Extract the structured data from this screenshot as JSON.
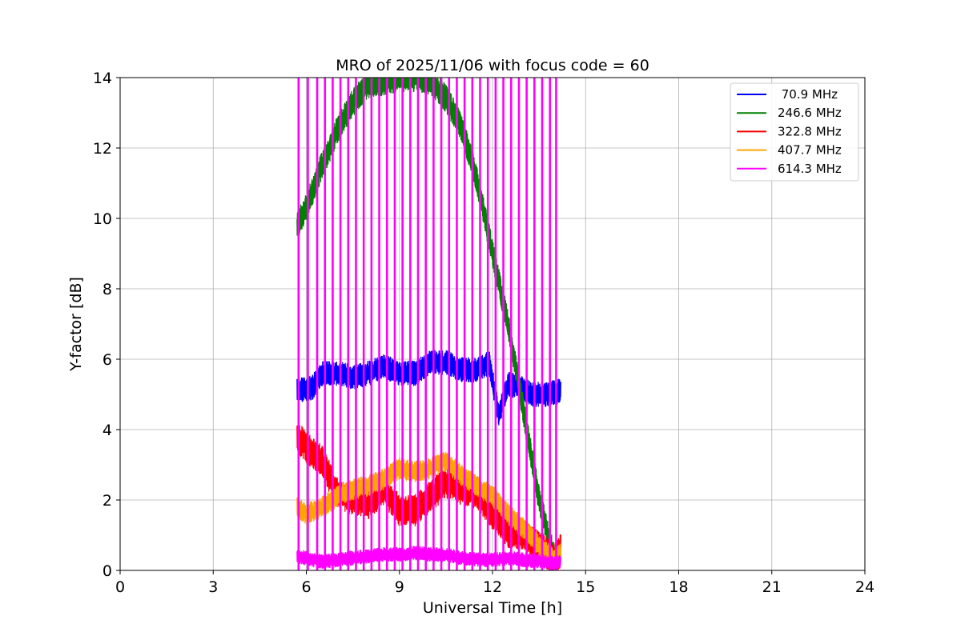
{
  "chart_data": {
    "type": "line",
    "title": "MRO of 2025/11/06 with focus code = 60",
    "xlabel": "Universal Time [h]",
    "ylabel": "Y-factor [dB]",
    "xlim": [
      0,
      24
    ],
    "ylim": [
      0,
      14
    ],
    "xticks": [
      0,
      3,
      6,
      9,
      12,
      15,
      18,
      21,
      24
    ],
    "yticks": [
      0,
      2,
      4,
      6,
      8,
      10,
      12,
      14
    ],
    "grid": true,
    "legend_position": "top-right",
    "series": [
      {
        "name": " 70.9 MHz",
        "color": "#0000ff",
        "noise": 0.35,
        "x": [
          5.7,
          6.2,
          6.5,
          7.0,
          7.5,
          8.0,
          8.5,
          9.0,
          9.5,
          10.0,
          10.5,
          11.0,
          11.5,
          11.9,
          12.2,
          12.5,
          12.9,
          13.3,
          13.7,
          14.2
        ],
        "y": [
          5.1,
          5.2,
          5.6,
          5.6,
          5.5,
          5.6,
          5.8,
          5.6,
          5.6,
          5.9,
          5.9,
          5.7,
          5.7,
          5.9,
          4.4,
          5.3,
          5.2,
          5.0,
          5.0,
          5.1
        ]
      },
      {
        "name": "246.6 MHz",
        "color": "#008000",
        "noise": 0.4,
        "x": [
          5.7,
          6.0,
          6.5,
          7.0,
          7.5,
          8.0,
          8.5,
          9.0,
          9.5,
          10.0,
          10.5,
          11.0,
          11.5,
          12.0,
          12.5,
          13.0,
          13.5,
          14.0
        ],
        "y": [
          9.8,
          10.3,
          11.5,
          12.5,
          13.3,
          13.8,
          13.9,
          14.0,
          14.0,
          13.9,
          13.4,
          12.6,
          11.1,
          9.0,
          7.0,
          4.5,
          2.0,
          0.3
        ]
      },
      {
        "name": "322.8 MHz",
        "color": "#ff0000",
        "noise": 0.45,
        "x": [
          5.7,
          6.0,
          6.5,
          7.0,
          7.5,
          8.0,
          8.5,
          9.0,
          9.5,
          10.0,
          10.5,
          11.0,
          11.5,
          12.0,
          12.5,
          13.0,
          13.5,
          14.0,
          14.2
        ],
        "y": [
          3.8,
          3.5,
          3.1,
          2.2,
          2.0,
          1.9,
          2.3,
          1.7,
          1.7,
          2.1,
          2.5,
          2.3,
          2.2,
          1.6,
          1.1,
          1.0,
          0.7,
          0.3,
          0.6
        ]
      },
      {
        "name": "407.7 MHz",
        "color": "#ffa500",
        "noise": 0.3,
        "x": [
          5.7,
          6.0,
          6.5,
          7.0,
          7.5,
          8.0,
          8.5,
          9.0,
          9.5,
          10.0,
          10.5,
          11.0,
          11.5,
          12.0,
          12.5,
          13.0,
          13.5,
          14.0,
          14.2
        ],
        "y": [
          1.8,
          1.6,
          1.8,
          2.1,
          2.3,
          2.4,
          2.6,
          2.9,
          2.8,
          2.9,
          3.1,
          2.7,
          2.4,
          2.1,
          1.6,
          1.2,
          0.7,
          0.3,
          0.5
        ]
      },
      {
        "name": "614.3 MHz",
        "color": "#ff00ff",
        "noise": 0.2,
        "x": [
          5.7,
          6.5,
          7.5,
          8.5,
          9.0,
          9.5,
          10.0,
          10.5,
          11.0,
          11.5,
          12.0,
          12.5,
          13.0,
          13.5,
          14.0,
          14.2
        ],
        "y": [
          0.4,
          0.25,
          0.35,
          0.45,
          0.45,
          0.5,
          0.45,
          0.45,
          0.35,
          0.3,
          0.3,
          0.35,
          0.3,
          0.25,
          0.2,
          0.25
        ],
        "spikes_x": [
          5.75,
          6.05,
          6.35,
          6.6,
          6.85,
          7.1,
          7.35,
          7.6,
          7.85,
          8.1,
          8.35,
          8.6,
          8.85,
          9.1,
          9.35,
          9.6,
          9.85,
          10.1,
          10.35,
          10.6,
          10.85,
          11.1,
          11.35,
          11.6,
          11.85,
          12.1,
          12.35,
          12.6,
          12.85,
          13.1,
          13.35,
          13.6,
          13.85,
          14.05
        ]
      }
    ]
  }
}
